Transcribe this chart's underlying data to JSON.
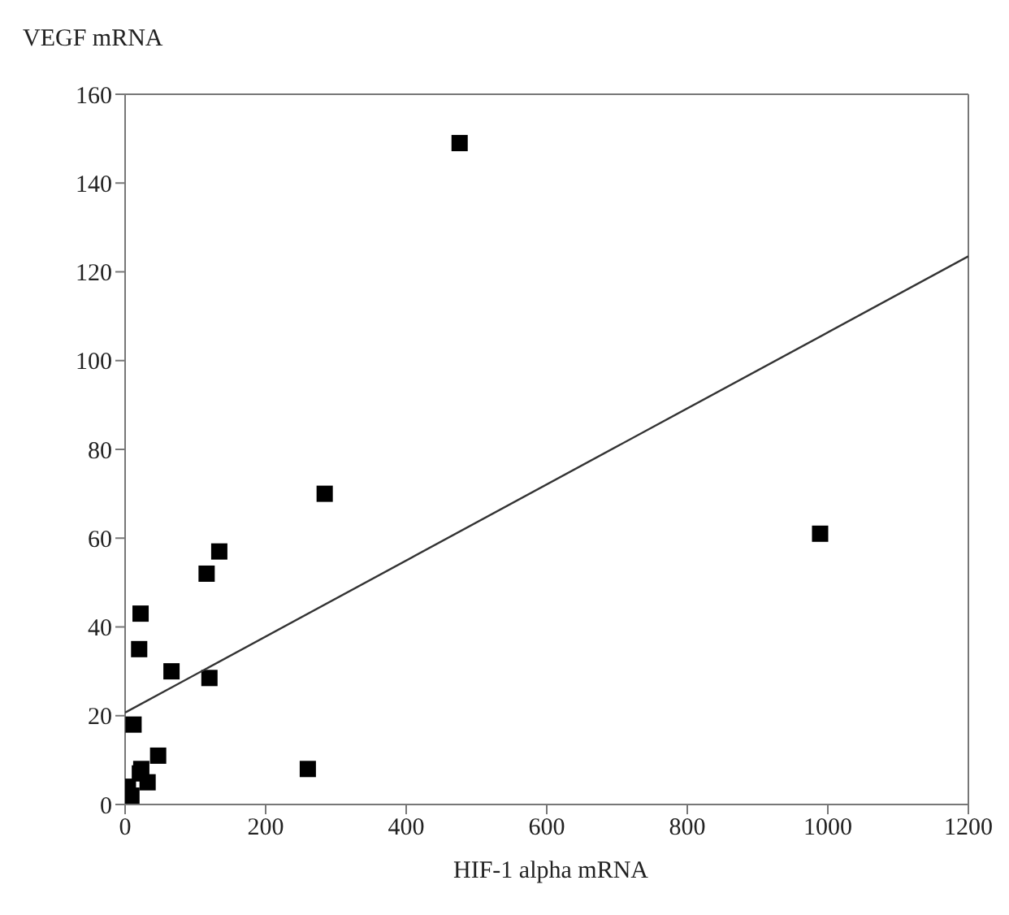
{
  "chart_data": {
    "type": "scatter",
    "xlabel": "HIF-1 alpha mRNA",
    "ylabel": "VEGF mRNA",
    "xlim": [
      0,
      1200
    ],
    "ylim": [
      0,
      160
    ],
    "xticks": [
      0,
      200,
      400,
      600,
      800,
      1000,
      1200
    ],
    "yticks": [
      0,
      20,
      40,
      60,
      80,
      100,
      120,
      140,
      160
    ],
    "marker": "square",
    "series": [
      {
        "color": "#000000",
        "x": [
          476,
          284,
          989,
          134,
          116,
          22,
          20,
          66,
          120,
          12,
          47,
          260,
          23,
          21,
          32,
          4,
          9
        ],
        "values": [
          149,
          70,
          61,
          57,
          52,
          43,
          35,
          30,
          28.5,
          18,
          11,
          8,
          8,
          7,
          5,
          4,
          2
        ]
      },
      {
        "type": "line",
        "color": "#333333",
        "marker": "none",
        "line_style": "solid",
        "x": [
          0,
          1200
        ],
        "values": [
          20.7,
          123.5
        ]
      }
    ]
  }
}
